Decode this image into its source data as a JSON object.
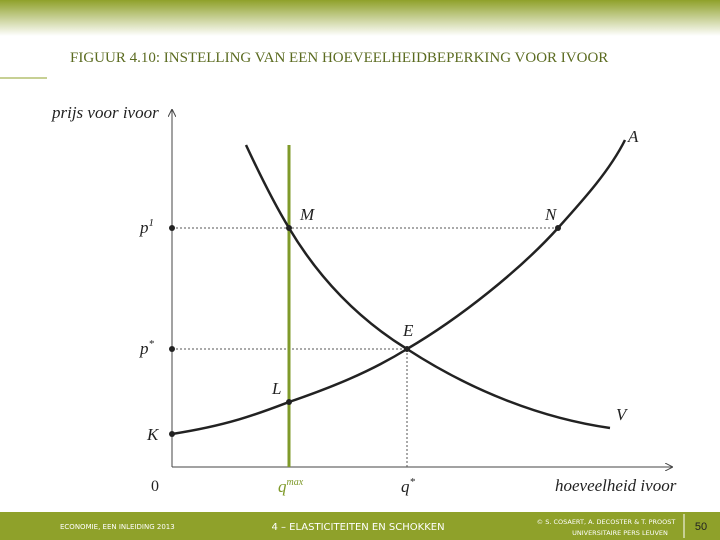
{
  "header": {
    "title": "FIGUUR 4.10: INSTELLING VAN EEN HOEVEELHEIDBEPERKING VOOR IVOOR"
  },
  "axes": {
    "y_label": "prijs voor ivoor",
    "x_label": "hoeveelheid ivoor",
    "origin": "0"
  },
  "y_points": [
    {
      "base": "p",
      "sup": "1"
    },
    {
      "base": "p",
      "sup": "*"
    }
  ],
  "x_points": [
    {
      "base": "q",
      "sup": "max"
    },
    {
      "base": "q",
      "sup": "*"
    }
  ],
  "points": [
    "M",
    "N",
    "E",
    "L",
    "K"
  ],
  "curves": [
    "A",
    "V"
  ],
  "footer": {
    "left": "ECONOMIE, EEN INLEIDING 2013",
    "center": "4 – ELASTICITEITEN EN SCHOKKEN",
    "right_line1": "© S. COSAERT, A. DECOSTER & T. PROOST",
    "right_line2": "UNIVERSITAIRE PERS LEUVEN",
    "page": "50"
  }
}
